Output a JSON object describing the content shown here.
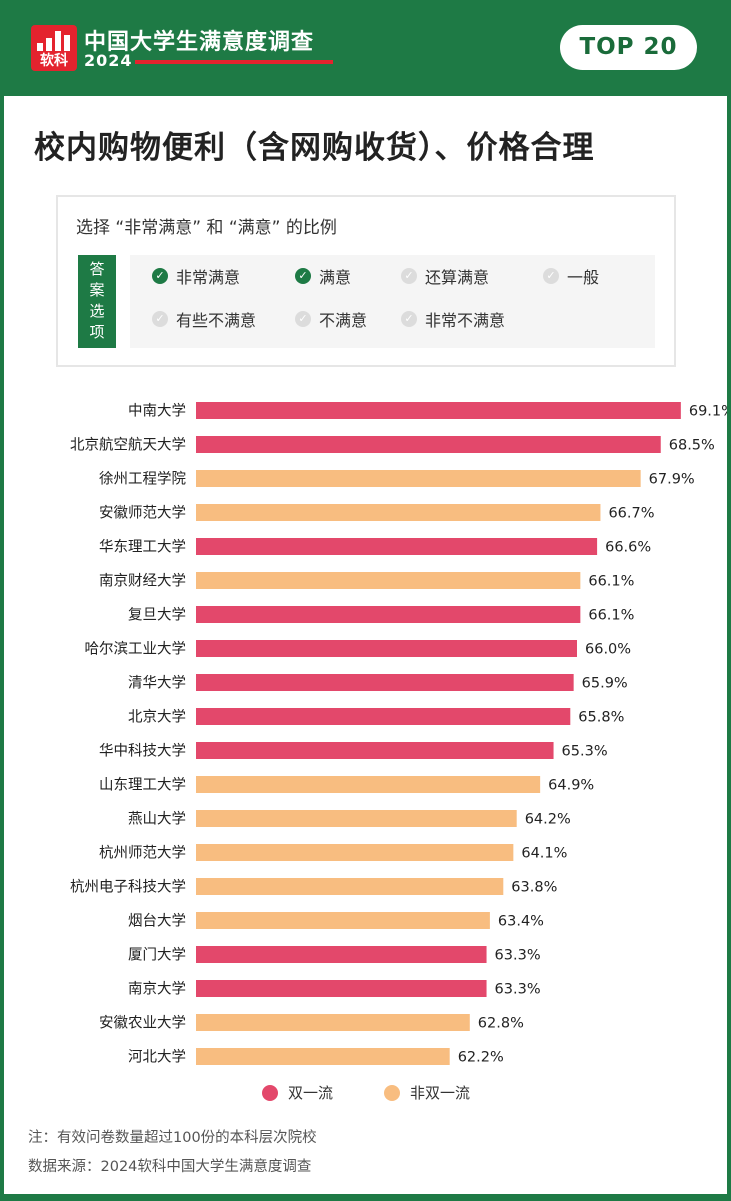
{
  "header": {
    "logo_text": "软科",
    "survey_title": "中国大学生满意度调查",
    "year": "2024",
    "badge": "TOP 20"
  },
  "colors": {
    "background_green": "#1e7a45",
    "brand_red": "#e4232e",
    "double_first_class": "#e3486b",
    "non_double_first_class": "#f8bd80"
  },
  "main_title": "校内购物便利（含网购收货）、价格合理",
  "options": {
    "question": "选择 “非常满意” 和 “满意” 的比例",
    "tag_chars": [
      "答",
      "案",
      "选",
      "项"
    ],
    "items": [
      {
        "label": "非常满意",
        "checked": true
      },
      {
        "label": "满意",
        "checked": true
      },
      {
        "label": "还算满意",
        "checked": false
      },
      {
        "label": "一般",
        "checked": false
      },
      {
        "label": "有些不满意",
        "checked": false
      },
      {
        "label": "不满意",
        "checked": false
      },
      {
        "label": "非常不满意",
        "checked": false
      }
    ]
  },
  "chart_data": {
    "type": "bar",
    "orientation": "horizontal",
    "title": "",
    "value_suffix": "%",
    "categories": [
      "中南大学",
      "北京航空航天大学",
      "徐州工程学院",
      "安徽师范大学",
      "华东理工大学",
      "南京财经大学",
      "复旦大学",
      "哈尔滨工业大学",
      "清华大学",
      "北京大学",
      "华中科技大学",
      "山东理工大学",
      "燕山大学",
      "杭州师范大学",
      "杭州电子科技大学",
      "烟台大学",
      "厦门大学",
      "南京大学",
      "安徽农业大学",
      "河北大学"
    ],
    "values": [
      69.1,
      68.5,
      67.9,
      66.7,
      66.6,
      66.1,
      66.1,
      66.0,
      65.9,
      65.8,
      65.3,
      64.9,
      64.2,
      64.1,
      63.8,
      63.4,
      63.3,
      63.3,
      62.8,
      62.2
    ],
    "groups": [
      "双一流",
      "双一流",
      "非双一流",
      "非双一流",
      "双一流",
      "非双一流",
      "双一流",
      "双一流",
      "双一流",
      "双一流",
      "双一流",
      "非双一流",
      "非双一流",
      "非双一流",
      "非双一流",
      "非双一流",
      "双一流",
      "双一流",
      "非双一流",
      "非双一流"
    ],
    "legend": [
      {
        "name": "双一流",
        "color": "#e3486b"
      },
      {
        "name": "非双一流",
        "color": "#f8bd80"
      }
    ],
    "legend_position": "bottom",
    "grid": false
  },
  "notes": {
    "note": "注：有效问卷数量超过100份的本科层次院校",
    "source": "数据来源：2024软科中国大学生满意度调查"
  }
}
